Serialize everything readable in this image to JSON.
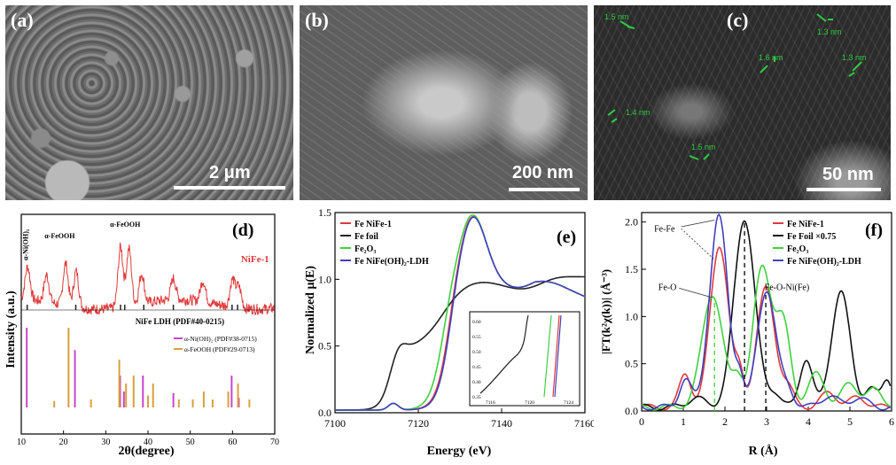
{
  "panel_a": {
    "letter": "(a)",
    "scale": "2 μm"
  },
  "panel_b": {
    "letter": "(b)",
    "scale": "200 nm"
  },
  "panel_c": {
    "letter": "(c)",
    "scale": "50 nm",
    "measurements": [
      "1.5 nm",
      "1.3 nm",
      "1.6 nm",
      "1.3 nm",
      "1.4 nm",
      "1.5 nm"
    ]
  },
  "chart_data": [
    {
      "id": "d",
      "letter": "(d)",
      "type": "line",
      "xlabel": "2θ(degree)",
      "ylabel": "Intensity (a.u.)",
      "xlim": [
        10,
        70
      ],
      "xticks": [
        10,
        20,
        30,
        40,
        50,
        60,
        70
      ],
      "series_label": "NiFe-1",
      "peak_labels": [
        "α-Ni(OH)₂",
        "α-FeOOH",
        "α-FeOOH"
      ],
      "ref_label": "NiFe LDH (PDF#40-0215)",
      "legend": [
        "α-Ni(OH)₂ (PDF#38-0715)",
        "α-FeOOH (PDF#29-0713)"
      ],
      "colors": {
        "pattern": "#e03a3a",
        "ni": "#c846c8",
        "fe": "#d9a03a",
        "ref": "#222222"
      },
      "peaks_main": [
        [
          11.5,
          0.55
        ],
        [
          16,
          0.45
        ],
        [
          20.5,
          0.7
        ],
        [
          23,
          0.6
        ],
        [
          33.5,
          1.0
        ],
        [
          35.5,
          0.95
        ],
        [
          38.5,
          0.5
        ],
        [
          46,
          0.35
        ],
        [
          53,
          0.35
        ],
        [
          60,
          0.45
        ],
        [
          61.5,
          0.35
        ]
      ],
      "ref_sticks": [
        11.4,
        22.9,
        33.5,
        34.5,
        39,
        46,
        59.9,
        61.2
      ],
      "ni_sticks": [
        [
          11.3,
          1.0
        ],
        [
          22.7,
          0.72
        ],
        [
          33.4,
          0.4
        ],
        [
          34.3,
          0.2
        ],
        [
          38.8,
          0.4
        ],
        [
          46,
          0.18
        ],
        [
          59.8,
          0.4
        ],
        [
          61.5,
          0.12
        ]
      ],
      "fe_sticks": [
        [
          17.8,
          0.08
        ],
        [
          21.2,
          1.0
        ],
        [
          26.5,
          0.1
        ],
        [
          33.2,
          0.6
        ],
        [
          34.8,
          0.3
        ],
        [
          36.6,
          0.4
        ],
        [
          40,
          0.15
        ],
        [
          41.2,
          0.3
        ],
        [
          47.3,
          0.1
        ],
        [
          50.6,
          0.1
        ],
        [
          53.2,
          0.2
        ],
        [
          55.3,
          0.1
        ],
        [
          59,
          0.2
        ],
        [
          61.3,
          0.3
        ],
        [
          64,
          0.1
        ]
      ]
    },
    {
      "id": "e",
      "letter": "(e)",
      "type": "line",
      "xlabel": "Energy (eV)",
      "ylabel": "Normalized μ(E)",
      "xlim": [
        7100,
        7160
      ],
      "ylim": [
        0.0,
        1.5
      ],
      "xticks": [
        7100,
        7120,
        7140,
        7160
      ],
      "yticks": [
        0.0,
        0.5,
        1.0,
        1.5
      ],
      "series": [
        {
          "name": "Fe NiFe-1",
          "color": "#e03a3a",
          "edge": 7127.2
        },
        {
          "name": "Fe foil",
          "color": "#222222",
          "edge": 7112
        },
        {
          "name": "Fe₂O₃",
          "color": "#3ed13e",
          "edge": 7125.8
        },
        {
          "name": "Fe NiFe(OH)₂-LDH",
          "color": "#4040c0",
          "edge": 7127.5
        }
      ],
      "inset": {
        "xticks": [
          "7116",
          "7120",
          "7124"
        ],
        "yticks": [
          "0.35",
          "0.40",
          "0.45",
          "0.50",
          "0.55",
          "0.60"
        ]
      }
    },
    {
      "id": "f",
      "letter": "(f)",
      "type": "line",
      "xlabel": "R (Å)",
      "ylabel": "|FT(k²χ(k))| (Å⁻³)",
      "xlim": [
        0,
        6
      ],
      "ylim": [
        0.0,
        2.1
      ],
      "xticks": [
        0,
        1,
        2,
        3,
        4,
        5,
        6
      ],
      "yticks": [
        0.0,
        0.5,
        1.0,
        1.5,
        2.0
      ],
      "annotations": [
        "Fe-Fe",
        "Fe-O",
        "Fe-O-Ni(Fe)"
      ],
      "series": [
        {
          "name": "Fe NiFe-1",
          "color": "#e03a3a",
          "peaks": [
            [
              1.05,
              0.35,
              0.14
            ],
            [
              1.87,
              1.72,
              0.22
            ],
            [
              2.35,
              0.3,
              0.1
            ],
            [
              2.98,
              1.25,
              0.22
            ],
            [
              3.5,
              0.2,
              0.15
            ],
            [
              4.5,
              0.15,
              0.2
            ],
            [
              5.2,
              0.1,
              0.2
            ]
          ]
        },
        {
          "name": "Fe Foil ×0.75",
          "color": "#111111",
          "peaks": [
            [
              1.3,
              0.1,
              0.2
            ],
            [
              2.47,
              2.0,
              0.25
            ],
            [
              3.2,
              0.15,
              0.15
            ],
            [
              3.95,
              0.52,
              0.15
            ],
            [
              4.78,
              1.23,
              0.22
            ],
            [
              5.5,
              0.2,
              0.15
            ],
            [
              5.9,
              0.3,
              0.12
            ]
          ]
        },
        {
          "name": "Fe₂O₃",
          "color": "#3ed13e",
          "peaks": [
            [
              1.7,
              1.2,
              0.25
            ],
            [
              2.3,
              0.3,
              0.12
            ],
            [
              2.9,
              1.48,
              0.22
            ],
            [
              3.4,
              0.85,
              0.18
            ],
            [
              4.2,
              0.35,
              0.2
            ],
            [
              5.0,
              0.25,
              0.2
            ],
            [
              5.6,
              0.18,
              0.2
            ]
          ]
        },
        {
          "name": "Fe NiFe(OH)₂-LDH",
          "color": "#4040c0",
          "peaks": [
            [
              1.05,
              0.3,
              0.14
            ],
            [
              1.85,
              2.02,
              0.22
            ],
            [
              2.35,
              0.3,
              0.1
            ],
            [
              3.0,
              1.25,
              0.22
            ],
            [
              3.5,
              0.18,
              0.15
            ],
            [
              4.5,
              0.12,
              0.2
            ],
            [
              5.2,
              0.1,
              0.2
            ]
          ]
        }
      ]
    }
  ]
}
